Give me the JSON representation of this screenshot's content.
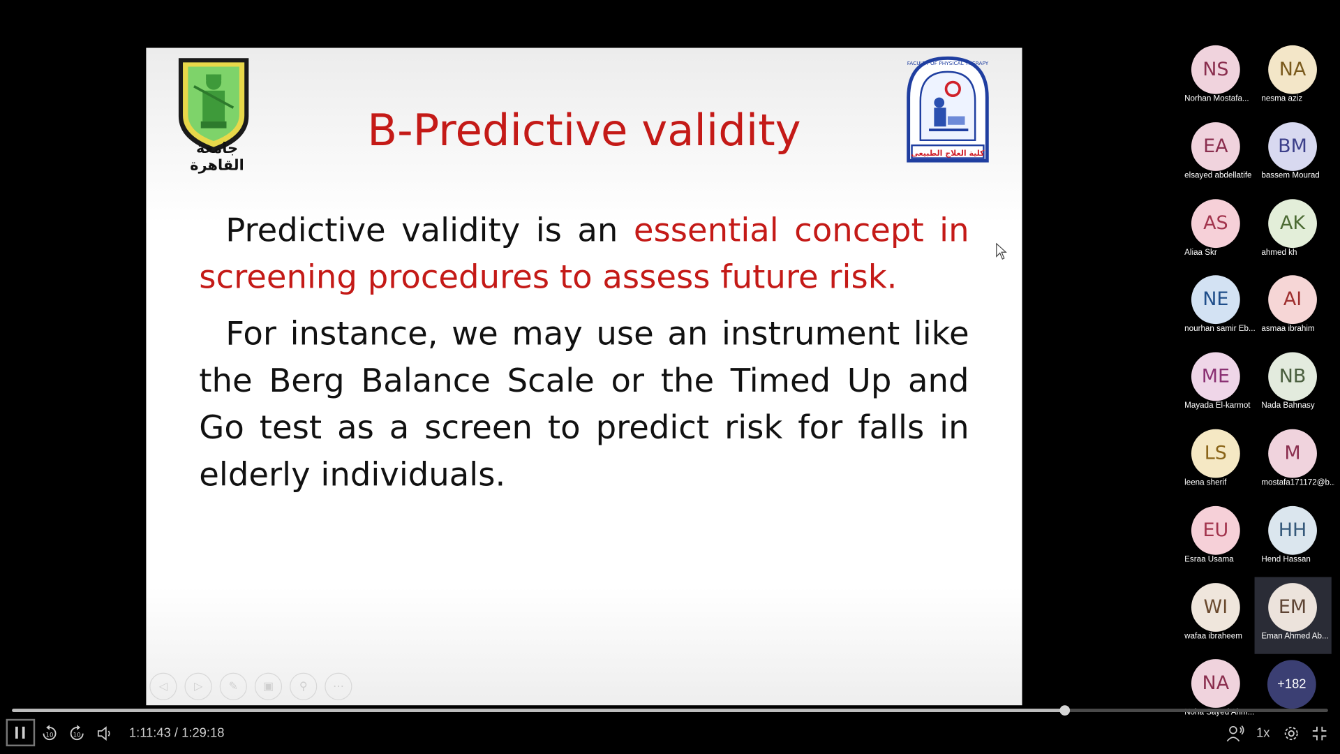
{
  "slide": {
    "title": "B-Predictive validity",
    "logo_left_text": "جامعة القاهرة",
    "logo_right_text": "FACULTY OF PHYSICAL THERAPY",
    "logo_right_arabic": "كلية العلاج الطبيعى",
    "paragraph1_black": "Predictive validity is an ",
    "paragraph1_red": "essential concept in screening procedures to assess future risk.",
    "paragraph2": "For instance, we may use an instrument like the Berg Balance Scale or the Timed Up and Go test as a screen to predict risk for falls in elderly individuals."
  },
  "participants": [
    {
      "initials": "NS",
      "name": "Norhan Mostafa...",
      "bg": "#f0d3dd",
      "fg": "#8a2e4e"
    },
    {
      "initials": "NA",
      "name": "nesma aziz",
      "bg": "#f3e6c8",
      "fg": "#7a5a1c"
    },
    {
      "initials": "EA",
      "name": "elsayed abdellatife",
      "bg": "#f0d3dd",
      "fg": "#8a2e4e"
    },
    {
      "initials": "BM",
      "name": "bassem Mourad",
      "bg": "#d8d9f0",
      "fg": "#3c3f8a"
    },
    {
      "initials": "AS",
      "name": "Aliaa Skr",
      "bg": "#f6d0d8",
      "fg": "#a2344d"
    },
    {
      "initials": "AK",
      "name": "ahmed kh",
      "bg": "#e3eed9",
      "fg": "#4c6b34"
    },
    {
      "initials": "NE",
      "name": "nourhan samir Eb...",
      "bg": "#d3e2f3",
      "fg": "#1f4e8a"
    },
    {
      "initials": "AI",
      "name": "asmaa ibrahim",
      "bg": "#f6d6d6",
      "fg": "#9e2e2e"
    },
    {
      "initials": "ME",
      "name": "Mayada El-karmot",
      "bg": "#efd6e8",
      "fg": "#8a3072"
    },
    {
      "initials": "NB",
      "name": "Nada Bahnasy",
      "bg": "#e3ebde",
      "fg": "#4a5e3e"
    },
    {
      "initials": "LS",
      "name": "leena sherif",
      "bg": "#f5e8c4",
      "fg": "#8a6418"
    },
    {
      "initials": "M",
      "name": "mostafa171172@b...",
      "bg": "#f0d3dd",
      "fg": "#8a2e4e"
    },
    {
      "initials": "EU",
      "name": "Esraa Usama",
      "bg": "#f6d0d8",
      "fg": "#a2344d"
    },
    {
      "initials": "HH",
      "name": "Hend Hassan",
      "bg": "#dbe6ee",
      "fg": "#35597a"
    },
    {
      "initials": "WI",
      "name": "wafaa ibraheem",
      "bg": "#efe6dc",
      "fg": "#6a4a2e"
    },
    {
      "initials": "EM",
      "name": "Eman Ahmed Ab...",
      "bg": "#ece3dc",
      "fg": "#5e4434"
    },
    {
      "initials": "NA",
      "name": "Noha Sayed Ahm...",
      "bg": "#f0d3dd",
      "fg": "#8a2e4e"
    }
  ],
  "participants_more": "+182",
  "player": {
    "current_time": "1:11:43",
    "separator": "/",
    "total_time": "1:29:18",
    "progress": 0.8,
    "speed": "1x",
    "rewind_label": "10",
    "forward_label": "10"
  }
}
